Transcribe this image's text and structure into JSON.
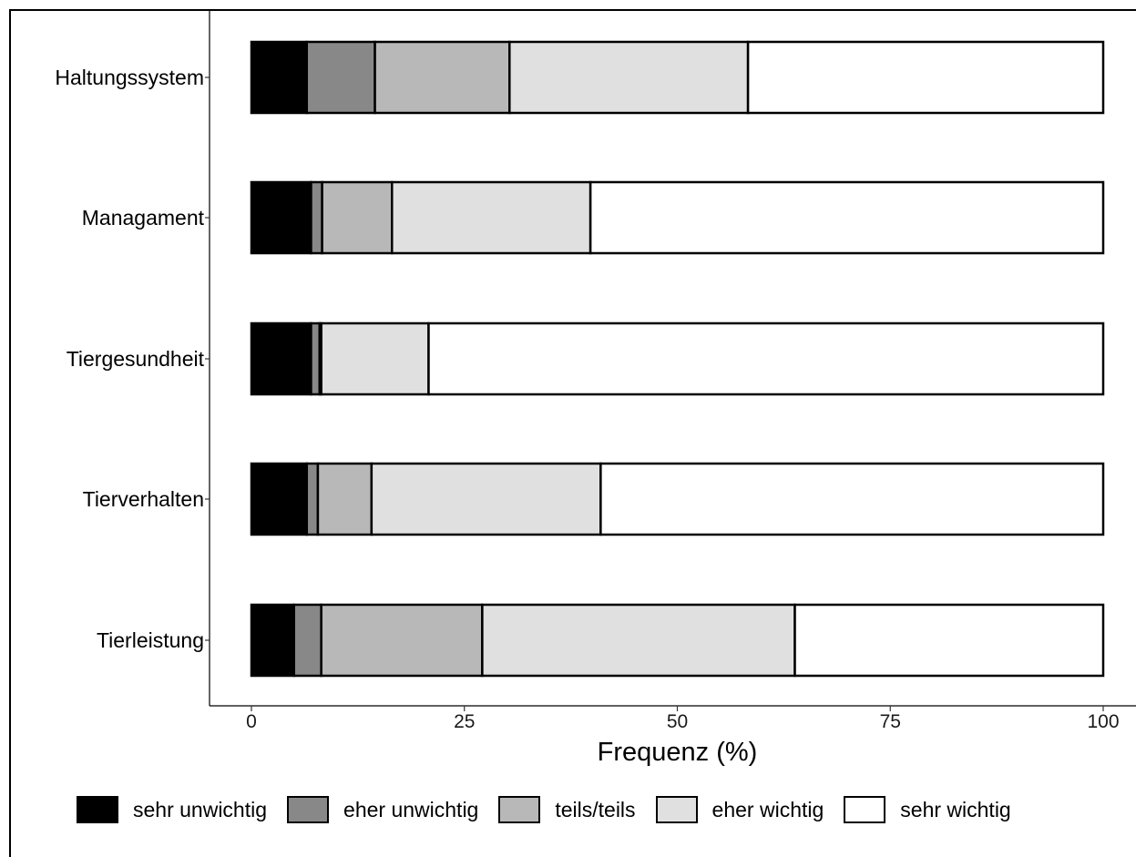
{
  "chart_data": {
    "type": "bar",
    "orientation": "horizontal",
    "stacked": true,
    "categories": [
      "Haltungssystem",
      "Managament",
      "Tiergesundheit",
      "Tierverhalten",
      "Tierleistung"
    ],
    "series": [
      {
        "name": "sehr unwichtig",
        "color": "#000000",
        "values": [
          6.5,
          7.0,
          7.0,
          6.5,
          5.0
        ]
      },
      {
        "name": "eher unwichtig",
        "color": "#888888",
        "values": [
          8.0,
          1.3,
          1.0,
          1.3,
          3.2
        ]
      },
      {
        "name": "teils/teils",
        "color": "#b8b8b8",
        "values": [
          15.8,
          8.2,
          0.2,
          6.3,
          18.9
        ]
      },
      {
        "name": "eher wichtig",
        "color": "#e0e0e0",
        "values": [
          28.0,
          23.3,
          12.6,
          26.9,
          36.7
        ]
      },
      {
        "name": "sehr wichtig",
        "color": "#ffffff",
        "values": [
          41.7,
          60.2,
          79.2,
          59.0,
          36.2
        ]
      }
    ],
    "xlabel": "Frequenz (%)",
    "xlim": [
      -5,
      104
    ],
    "xticks": [
      0,
      25,
      50,
      75,
      100
    ],
    "xtick_labels": [
      "0",
      "25",
      "50",
      "75",
      "100"
    ],
    "grid": false,
    "legend_position": "bottom"
  }
}
